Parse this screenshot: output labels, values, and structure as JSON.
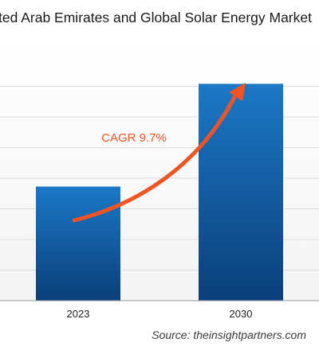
{
  "chart_data": {
    "type": "bar",
    "title": "ted Arab Emirates and Global Solar Energy Market",
    "categories": [
      "2023",
      "2030"
    ],
    "values": [
      1.0,
      1.9
    ],
    "ylim": [
      0,
      2.3
    ],
    "grid": true,
    "annotation": "CAGR 9.7%",
    "xlabel": "",
    "ylabel": ""
  },
  "colors": {
    "bar_top": "#1c78c6",
    "bar_bottom": "#0a3f7a",
    "arrow": "#f05423",
    "grid": "#dcdcdc",
    "plot_background": "#f3f3f3",
    "annotation_text": "#f05423"
  },
  "source": {
    "label": "Source: theinsightpartners.com"
  }
}
